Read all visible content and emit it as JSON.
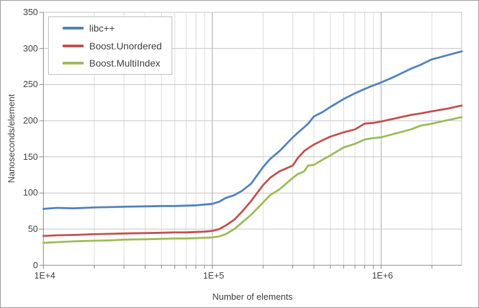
{
  "chart_data": {
    "type": "line",
    "title": "",
    "xlabel": "Number of elements",
    "ylabel": "Nanoseconds/element",
    "x_scale": "log",
    "xlim": [
      10000,
      3000000
    ],
    "ylim": [
      0,
      350
    ],
    "y_ticks": [
      0,
      50,
      100,
      150,
      200,
      250,
      300,
      350
    ],
    "x_ticks": [
      {
        "value": 10000,
        "label": "1E+4"
      },
      {
        "value": 100000,
        "label": "1E+5"
      },
      {
        "value": 1000000,
        "label": "1E+6"
      }
    ],
    "grid": "on",
    "legend_position": "top-left",
    "colors": {
      "grid_minor": "#dcdcdc",
      "grid_major": "#c3c3c3",
      "grid_decade": "#a8a8a8",
      "axis_line": "#868686",
      "tick_text": "#3f3f3f",
      "plot_border": "#c3c3c3"
    },
    "x": [
      10000,
      12000,
      15000,
      20000,
      25000,
      30000,
      40000,
      50000,
      60000,
      70000,
      80000,
      90000,
      100000,
      110000,
      120000,
      135000,
      150000,
      170000,
      200000,
      220000,
      250000,
      300000,
      320000,
      350000,
      370000,
      400000,
      450000,
      500000,
      600000,
      700000,
      800000,
      900000,
      1000000,
      1200000,
      1500000,
      1700000,
      2000000,
      2500000,
      3000000
    ],
    "series": [
      {
        "name": "libc++",
        "color": "#4f81bd",
        "values": [
          78,
          79.5,
          78.8,
          80,
          80.5,
          81,
          81.5,
          82,
          82,
          82.5,
          83,
          84,
          85,
          88,
          93,
          97,
          103,
          113,
          136,
          147,
          158,
          177,
          183,
          191,
          196,
          206,
          212,
          219,
          230,
          238,
          244,
          249,
          253,
          261,
          272,
          277,
          285,
          291,
          296
        ]
      },
      {
        "name": "Boost.Unordered",
        "color": "#c0504d",
        "values": [
          40.5,
          41.5,
          42,
          43,
          43.5,
          44,
          44.5,
          45,
          45.5,
          45.5,
          46,
          46.5,
          47.5,
          50,
          55,
          63,
          74,
          89,
          111,
          121,
          130,
          138,
          148,
          158,
          162,
          167,
          173,
          178,
          184,
          188,
          196,
          197,
          199,
          203,
          208,
          210,
          213,
          217,
          221
        ]
      },
      {
        "name": "Boost.MultiIndex",
        "color": "#9bbb59",
        "values": [
          31,
          32,
          33,
          34,
          34.5,
          35.5,
          36,
          36.5,
          37,
          37,
          37.5,
          38,
          38.5,
          40,
          43,
          50,
          59,
          70,
          87,
          97,
          105,
          121,
          126,
          130,
          138,
          139,
          146,
          152,
          163,
          168,
          174,
          176,
          177,
          182,
          188,
          193,
          196,
          201,
          205
        ]
      }
    ]
  }
}
